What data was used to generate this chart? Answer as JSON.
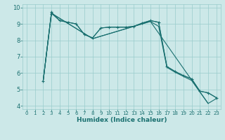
{
  "xlabel": "Humidex (Indice chaleur)",
  "xlim": [
    -0.5,
    23.5
  ],
  "ylim": [
    3.8,
    10.2
  ],
  "yticks": [
    4,
    5,
    6,
    7,
    8,
    9,
    10
  ],
  "xticks": [
    0,
    1,
    2,
    3,
    4,
    5,
    6,
    7,
    8,
    9,
    10,
    11,
    12,
    13,
    14,
    15,
    16,
    17,
    18,
    19,
    20,
    21,
    22,
    23
  ],
  "bg_color": "#cce8e8",
  "grid_color": "#99cccc",
  "line_color": "#1a7070",
  "line_color2": "#227777",
  "curve_x": [
    2,
    3,
    4,
    5,
    6,
    7,
    8,
    9,
    10,
    11,
    12,
    13,
    14,
    15,
    16,
    17,
    18,
    19,
    20,
    21,
    22,
    23
  ],
  "curve_y": [
    5.5,
    9.65,
    9.2,
    9.1,
    9.0,
    8.35,
    8.15,
    8.75,
    8.8,
    8.8,
    8.8,
    8.85,
    9.05,
    9.2,
    9.1,
    6.4,
    6.1,
    5.85,
    5.65,
    4.9,
    4.8,
    4.5
  ],
  "diag1_x": [
    2,
    3,
    8,
    15,
    16,
    17,
    18,
    19,
    20,
    21,
    22,
    23
  ],
  "diag1_y": [
    5.5,
    9.65,
    8.1,
    9.15,
    8.85,
    6.35,
    6.05,
    5.8,
    5.55,
    4.85,
    4.15,
    4.45
  ],
  "diag2_x": [
    2,
    3,
    8,
    15,
    22
  ],
  "diag2_y": [
    5.5,
    9.65,
    8.1,
    9.15,
    4.15
  ],
  "curve2_x": [
    2,
    3,
    3,
    4,
    5,
    6,
    7,
    8,
    9,
    10,
    11,
    12,
    13,
    14,
    15,
    16,
    17,
    18,
    19,
    20,
    21,
    22,
    23
  ],
  "curve2_y": [
    5.5,
    9.6,
    9.72,
    9.2,
    9.1,
    9.0,
    8.35,
    8.15,
    8.75,
    8.8,
    8.8,
    8.8,
    8.85,
    9.05,
    9.2,
    9.1,
    6.4,
    6.1,
    5.85,
    5.65,
    4.9,
    4.8,
    4.5
  ]
}
